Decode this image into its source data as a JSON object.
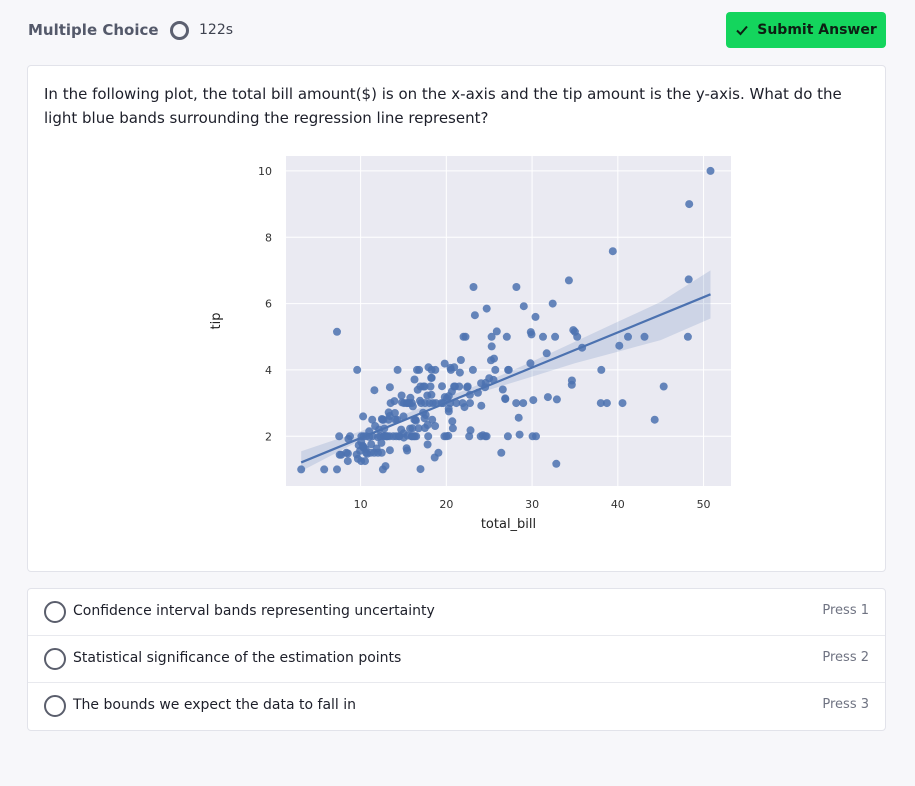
{
  "header": {
    "mode_label": "Multiple Choice",
    "timer": "122s",
    "submit_label": "Submit Answer"
  },
  "question": {
    "text": "In the following plot, the total bill amount($) is on the x-axis and the tip amount is the y-axis. What do the light blue bands surrounding the regression line represent?"
  },
  "chart_data": {
    "type": "scatter",
    "xlabel": "total_bill",
    "ylabel": "tip",
    "xlim": [
      1.3,
      53.2
    ],
    "ylim": [
      0.5,
      10.45
    ],
    "xticks": [
      10,
      20,
      30,
      40,
      50
    ],
    "yticks": [
      2,
      4,
      6,
      8,
      10
    ],
    "grid": true,
    "point_color": "#4c72b0",
    "background_color": "#eaeaf2",
    "regression_line": {
      "x": [
        3.07,
        50.81
      ],
      "y": [
        1.21,
        6.28
      ]
    },
    "confidence_band": {
      "x": [
        3.07,
        10,
        15,
        19.8,
        25,
        30,
        35,
        40,
        45,
        50.81
      ],
      "lower": [
        0.95,
        1.88,
        2.5,
        3.0,
        3.4,
        3.8,
        4.2,
        4.55,
        4.9,
        5.55
      ],
      "upper": [
        1.55,
        2.15,
        2.65,
        3.15,
        3.68,
        4.25,
        4.85,
        5.45,
        6.05,
        7.0
      ]
    },
    "points": [
      [
        3.07,
        1.0
      ],
      [
        5.75,
        1.0
      ],
      [
        7.25,
        1.0
      ],
      [
        7.25,
        5.15
      ],
      [
        7.51,
        2.0
      ],
      [
        7.56,
        1.44
      ],
      [
        7.74,
        1.44
      ],
      [
        8.35,
        1.5
      ],
      [
        8.51,
        1.25
      ],
      [
        8.52,
        1.48
      ],
      [
        8.58,
        1.92
      ],
      [
        8.77,
        2.0
      ],
      [
        9.55,
        1.45
      ],
      [
        9.6,
        4.0
      ],
      [
        9.68,
        1.32
      ],
      [
        9.78,
        1.73
      ],
      [
        9.94,
        1.56
      ],
      [
        10.07,
        1.25
      ],
      [
        10.07,
        1.83
      ],
      [
        10.09,
        2.0
      ],
      [
        10.27,
        1.71
      ],
      [
        10.29,
        2.6
      ],
      [
        10.33,
        1.67
      ],
      [
        10.34,
        1.66
      ],
      [
        10.34,
        2.0
      ],
      [
        10.51,
        1.25
      ],
      [
        10.59,
        1.61
      ],
      [
        10.63,
        2.0
      ],
      [
        10.65,
        1.5
      ],
      [
        10.77,
        1.47
      ],
      [
        11.02,
        1.98
      ],
      [
        11.17,
        1.5
      ],
      [
        11.24,
        1.76
      ],
      [
        11.35,
        2.5
      ],
      [
        11.38,
        2.0
      ],
      [
        11.59,
        1.5
      ],
      [
        11.61,
        3.39
      ],
      [
        11.69,
        2.31
      ],
      [
        11.87,
        1.63
      ],
      [
        12.02,
        1.97
      ],
      [
        12.03,
        1.5
      ],
      [
        12.16,
        2.2
      ],
      [
        12.26,
        2.0
      ],
      [
        12.43,
        1.8
      ],
      [
        12.46,
        1.5
      ],
      [
        12.48,
        2.52
      ],
      [
        12.54,
        2.5
      ],
      [
        12.6,
        1.0
      ],
      [
        12.66,
        2.5
      ],
      [
        12.69,
        2.0
      ],
      [
        12.74,
        2.01
      ],
      [
        12.76,
        2.23
      ],
      [
        12.9,
        1.1
      ],
      [
        13.0,
        2.0
      ],
      [
        13.03,
        2.0
      ],
      [
        13.13,
        2.0
      ],
      [
        13.27,
        2.5
      ],
      [
        13.28,
        2.72
      ],
      [
        13.37,
        2.0
      ],
      [
        13.39,
        2.61
      ],
      [
        13.42,
        1.58
      ],
      [
        13.42,
        3.48
      ],
      [
        13.81,
        2.0
      ],
      [
        13.94,
        3.06
      ],
      [
        14.07,
        2.5
      ],
      [
        14.15,
        2.0
      ],
      [
        14.26,
        2.5
      ],
      [
        14.31,
        4.0
      ],
      [
        14.48,
        2.0
      ],
      [
        14.52,
        2.0
      ],
      [
        14.73,
        2.2
      ],
      [
        14.78,
        3.23
      ],
      [
        14.83,
        3.02
      ],
      [
        15.01,
        2.09
      ],
      [
        15.04,
        1.96
      ],
      [
        15.06,
        3.0
      ],
      [
        15.36,
        1.64
      ],
      [
        15.38,
        3.0
      ],
      [
        15.42,
        1.57
      ],
      [
        15.48,
        2.02
      ],
      [
        15.53,
        3.0
      ],
      [
        15.69,
        3.0
      ],
      [
        15.77,
        2.23
      ],
      [
        15.81,
        3.16
      ],
      [
        15.95,
        2.0
      ],
      [
        15.98,
        3.0
      ],
      [
        16.0,
        2.0
      ],
      [
        16.04,
        2.24
      ],
      [
        16.21,
        2.0
      ],
      [
        16.27,
        2.5
      ],
      [
        16.29,
        3.71
      ],
      [
        16.31,
        2.0
      ],
      [
        16.4,
        2.5
      ],
      [
        16.45,
        2.47
      ],
      [
        16.49,
        2.0
      ],
      [
        16.58,
        4.0
      ],
      [
        16.66,
        3.4
      ],
      [
        16.76,
        2.24
      ],
      [
        16.82,
        4.0
      ],
      [
        16.93,
        3.07
      ],
      [
        16.97,
        3.5
      ],
      [
        16.99,
        1.01
      ],
      [
        17.07,
        3.0
      ],
      [
        17.29,
        2.71
      ],
      [
        17.31,
        3.5
      ],
      [
        17.46,
        2.54
      ],
      [
        17.47,
        3.5
      ],
      [
        17.51,
        3.0
      ],
      [
        17.59,
        2.64
      ],
      [
        17.78,
        3.23
      ],
      [
        17.81,
        2.34
      ],
      [
        17.82,
        1.75
      ],
      [
        17.89,
        2.0
      ],
      [
        17.92,
        4.08
      ],
      [
        18.04,
        3.0
      ],
      [
        18.15,
        3.5
      ],
      [
        18.24,
        3.76
      ],
      [
        18.26,
        3.25
      ],
      [
        18.28,
        4.0
      ],
      [
        18.29,
        3.76
      ],
      [
        18.35,
        2.5
      ],
      [
        18.43,
        3.0
      ],
      [
        18.64,
        1.36
      ],
      [
        18.69,
        2.31
      ],
      [
        18.71,
        4.0
      ],
      [
        18.78,
        3.0
      ],
      [
        19.08,
        1.5
      ],
      [
        19.44,
        3.0
      ],
      [
        19.49,
        3.51
      ],
      [
        19.65,
        3.0
      ],
      [
        19.77,
        2.0
      ],
      [
        19.81,
        4.19
      ],
      [
        19.82,
        3.18
      ],
      [
        20.08,
        3.15
      ],
      [
        20.23,
        2.01
      ],
      [
        20.27,
        2.83
      ],
      [
        20.29,
        3.21
      ],
      [
        20.29,
        2.75
      ],
      [
        20.45,
        3.0
      ],
      [
        20.49,
        4.06
      ],
      [
        20.53,
        4.0
      ],
      [
        20.65,
        3.35
      ],
      [
        20.69,
        2.45
      ],
      [
        20.76,
        2.24
      ],
      [
        20.9,
        3.5
      ],
      [
        20.92,
        4.08
      ],
      [
        21.01,
        3.5
      ],
      [
        21.16,
        3.0
      ],
      [
        21.5,
        3.5
      ],
      [
        21.58,
        3.92
      ],
      [
        21.7,
        4.3
      ],
      [
        22.12,
        2.88
      ],
      [
        22.23,
        5.0
      ],
      [
        22.42,
        3.48
      ],
      [
        22.49,
        3.5
      ],
      [
        22.67,
        2.0
      ],
      [
        22.75,
        3.25
      ],
      [
        22.76,
        3.0
      ],
      [
        22.82,
        2.18
      ],
      [
        23.1,
        4.0
      ],
      [
        23.17,
        6.5
      ],
      [
        23.33,
        5.65
      ],
      [
        23.68,
        3.31
      ],
      [
        24.01,
        2.0
      ],
      [
        24.06,
        3.6
      ],
      [
        24.08,
        2.92
      ],
      [
        24.27,
        2.03
      ],
      [
        24.52,
        3.48
      ],
      [
        24.55,
        2.0
      ],
      [
        24.59,
        3.61
      ],
      [
        24.71,
        5.85
      ],
      [
        25.0,
        3.75
      ],
      [
        25.21,
        4.29
      ],
      [
        25.28,
        5.0
      ],
      [
        25.29,
        4.71
      ],
      [
        25.56,
        4.34
      ],
      [
        25.71,
        4.0
      ],
      [
        25.89,
        5.16
      ],
      [
        26.41,
        1.5
      ],
      [
        26.59,
        3.41
      ],
      [
        26.86,
        3.14
      ],
      [
        26.88,
        3.12
      ],
      [
        27.05,
        5.0
      ],
      [
        27.18,
        2.0
      ],
      [
        27.2,
        4.0
      ],
      [
        27.28,
        4.0
      ],
      [
        28.15,
        3.0
      ],
      [
        28.17,
        6.5
      ],
      [
        28.44,
        2.56
      ],
      [
        28.55,
        2.05
      ],
      [
        28.97,
        3.0
      ],
      [
        29.03,
        5.92
      ],
      [
        29.8,
        4.2
      ],
      [
        29.85,
        5.14
      ],
      [
        29.93,
        5.07
      ],
      [
        30.06,
        2.0
      ],
      [
        30.14,
        3.09
      ],
      [
        30.4,
        5.6
      ],
      [
        30.46,
        2.0
      ],
      [
        31.27,
        5.0
      ],
      [
        31.71,
        4.5
      ],
      [
        31.85,
        3.18
      ],
      [
        32.4,
        6.0
      ],
      [
        32.68,
        5.0
      ],
      [
        32.83,
        1.17
      ],
      [
        32.9,
        3.11
      ],
      [
        34.3,
        6.7
      ],
      [
        34.63,
        3.55
      ],
      [
        34.65,
        3.68
      ],
      [
        34.81,
        5.2
      ],
      [
        35.26,
        5.0
      ],
      [
        35.83,
        4.67
      ],
      [
        38.01,
        3.0
      ],
      [
        38.07,
        4.0
      ],
      [
        38.73,
        3.0
      ],
      [
        39.42,
        7.58
      ],
      [
        40.17,
        4.73
      ],
      [
        40.55,
        3.0
      ],
      [
        41.19,
        5.0
      ],
      [
        43.11,
        5.0
      ],
      [
        44.3,
        2.5
      ],
      [
        45.35,
        3.5
      ],
      [
        48.17,
        5.0
      ],
      [
        48.27,
        6.73
      ],
      [
        48.33,
        9.0
      ],
      [
        50.81,
        10.0
      ],
      [
        24.7,
        2.0
      ],
      [
        20.0,
        2.0
      ],
      [
        35.0,
        5.15
      ],
      [
        16.1,
        2.9
      ],
      [
        21.9,
        3.0
      ],
      [
        25.5,
        3.7
      ],
      [
        22.0,
        5.0
      ],
      [
        14.0,
        2.7
      ],
      [
        11.0,
        2.15
      ],
      [
        13.5,
        3.0
      ],
      [
        17.5,
        2.25
      ],
      [
        15.0,
        2.6
      ]
    ]
  },
  "options": [
    {
      "text": "Confidence interval bands representing uncertainty",
      "key": "Press 1"
    },
    {
      "text": "Statistical significance of the estimation points",
      "key": "Press 2"
    },
    {
      "text": "The bounds we expect the data to fall in",
      "key": "Press 3"
    }
  ]
}
